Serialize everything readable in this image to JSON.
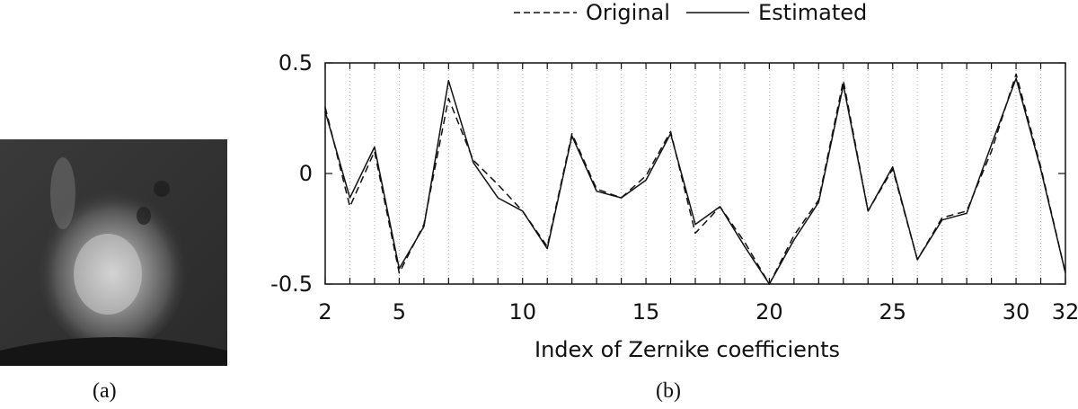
{
  "captions": {
    "a": "(a)",
    "b": "(b)"
  },
  "chart_data": {
    "type": "line",
    "xlabel": "Index of Zernike coefficients",
    "ylabel": "",
    "xlim": [
      2,
      32
    ],
    "ylim": [
      -0.5,
      0.5
    ],
    "xticks": [
      2,
      5,
      10,
      15,
      20,
      25,
      30,
      32
    ],
    "yticks": [
      0.5,
      0,
      -0.5
    ],
    "ytick_labels": [
      "0.5",
      "0",
      "-0.5"
    ],
    "grid": "vertical dotted at each index",
    "legend_position": "top",
    "x": [
      2,
      3,
      4,
      5,
      6,
      7,
      8,
      9,
      10,
      11,
      12,
      13,
      14,
      15,
      16,
      17,
      18,
      19,
      20,
      21,
      22,
      23,
      24,
      25,
      26,
      27,
      28,
      29,
      30,
      31,
      32
    ],
    "series": [
      {
        "name": "Original",
        "style": "dashed",
        "values": [
          0.3,
          -0.15,
          0.1,
          -0.45,
          -0.23,
          0.34,
          0.06,
          -0.05,
          -0.17,
          -0.33,
          0.18,
          -0.07,
          -0.11,
          -0.01,
          0.19,
          -0.27,
          -0.15,
          -0.31,
          -0.5,
          -0.28,
          -0.12,
          0.42,
          -0.17,
          0.02,
          -0.39,
          -0.2,
          -0.17,
          0.1,
          0.45,
          0.03,
          -0.45
        ]
      },
      {
        "name": "Estimated",
        "style": "solid",
        "values": [
          0.28,
          -0.11,
          0.12,
          -0.43,
          -0.24,
          0.42,
          0.05,
          -0.11,
          -0.17,
          -0.34,
          0.17,
          -0.08,
          -0.11,
          -0.03,
          0.18,
          -0.23,
          -0.15,
          -0.33,
          -0.5,
          -0.3,
          -0.13,
          0.4,
          -0.17,
          0.03,
          -0.39,
          -0.21,
          -0.18,
          0.13,
          0.43,
          0.02,
          -0.45
        ]
      }
    ]
  }
}
